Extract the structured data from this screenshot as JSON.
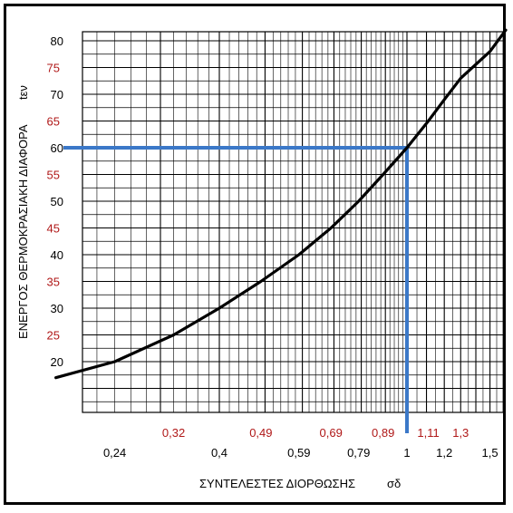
{
  "chart_data": {
    "type": "line",
    "title": "",
    "xlabel": "ΣΥΝΤΕΛΕΣΤΕΣ ΔΙΟΡΘΩΣΗΣ",
    "xlabel_symbol": "σδ",
    "ylabel": "ΕΝΕΡΓΟΣ ΘΕΡΜΟΚΡΑΣΙΑΚΗ ΔΙΑΦΟΡΑ",
    "ylabel_symbol": "tεν",
    "x_scale": "log",
    "ylim": [
      10,
      80
    ],
    "grid": true,
    "y_ticks": [
      {
        "label": "80",
        "value": 80,
        "color": "black"
      },
      {
        "label": "75",
        "value": 75,
        "color": "red"
      },
      {
        "label": "70",
        "value": 70,
        "color": "black"
      },
      {
        "label": "65",
        "value": 65,
        "color": "red"
      },
      {
        "label": "60",
        "value": 60,
        "color": "black"
      },
      {
        "label": "55",
        "value": 55,
        "color": "red"
      },
      {
        "label": "50",
        "value": 50,
        "color": "black"
      },
      {
        "label": "45",
        "value": 45,
        "color": "red"
      },
      {
        "label": "40",
        "value": 40,
        "color": "black"
      },
      {
        "label": "35",
        "value": 35,
        "color": "red"
      },
      {
        "label": "30",
        "value": 30,
        "color": "black"
      },
      {
        "label": "25",
        "value": 25,
        "color": "red"
      },
      {
        "label": "20",
        "value": 20,
        "color": "black"
      }
    ],
    "x_ticks_lower": [
      {
        "label": "0,24",
        "value": 0.24
      },
      {
        "label": "0,4",
        "value": 0.4
      },
      {
        "label": "0,59",
        "value": 0.59
      },
      {
        "label": "0,79",
        "value": 0.79
      },
      {
        "label": "1",
        "value": 1.0
      },
      {
        "label": "1,2",
        "value": 1.2
      },
      {
        "label": "1,5",
        "value": 1.5
      }
    ],
    "x_ticks_upper": [
      {
        "label": "0,32",
        "value": 0.32
      },
      {
        "label": "0,49",
        "value": 0.49
      },
      {
        "label": "0,69",
        "value": 0.69
      },
      {
        "label": "0,89",
        "value": 0.89
      },
      {
        "label": "1,11",
        "value": 1.11
      },
      {
        "label": "1,3",
        "value": 1.3
      }
    ],
    "series": [
      {
        "x": [
          0.18,
          0.24,
          0.32,
          0.4,
          0.49,
          0.59,
          0.69,
          0.79,
          0.89,
          1.0,
          1.11,
          1.2,
          1.3,
          1.5,
          1.62
        ],
        "y": [
          17,
          20,
          25,
          30,
          35,
          40,
          45,
          50,
          55,
          60,
          65,
          69,
          73,
          78,
          82
        ],
        "color": "#000000"
      }
    ],
    "guide": {
      "x": 1.0,
      "y": 60,
      "color": "#3b78c8"
    },
    "colors": {
      "red_label": "#b01818",
      "black_label": "#000000",
      "guide": "#3b78c8",
      "grid": "#000000"
    }
  }
}
